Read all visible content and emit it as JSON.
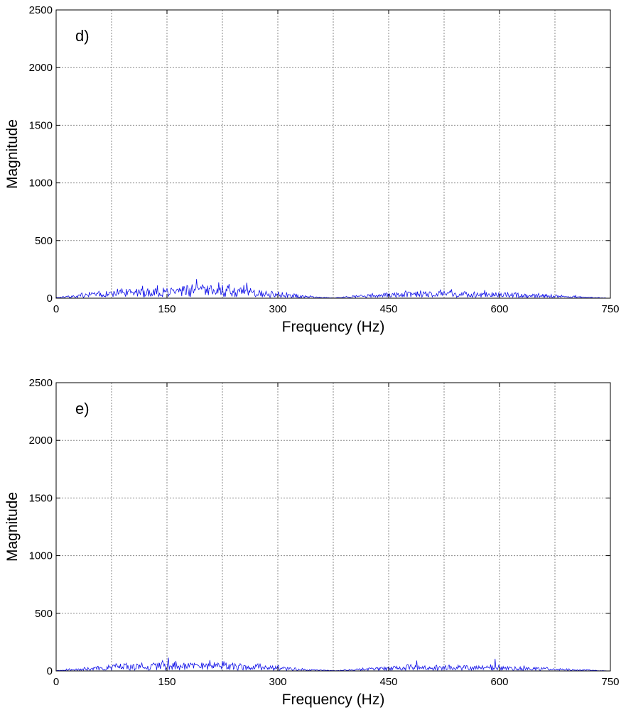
{
  "colors": {
    "series": "#1010e8"
  },
  "chart_data": [
    {
      "type": "line",
      "panel_label": "d)",
      "xlabel": "Frequency (Hz)",
      "ylabel": "Magnitude",
      "xlim": [
        0,
        750
      ],
      "ylim": [
        0,
        2500
      ],
      "xticks": [
        "0",
        "150",
        "300",
        "450",
        "600",
        "750"
      ],
      "yticks": [
        "0",
        "500",
        "1000",
        "1500",
        "2000",
        "2500"
      ],
      "grid": true,
      "x_grid_step": 75,
      "y_grid_step": 500,
      "x_step": 1,
      "noise_seed": 7,
      "envelope": [
        [
          0,
          5
        ],
        [
          30,
          20
        ],
        [
          75,
          45
        ],
        [
          150,
          65
        ],
        [
          190,
          78
        ],
        [
          225,
          70
        ],
        [
          260,
          60
        ],
        [
          300,
          30
        ],
        [
          345,
          12
        ],
        [
          375,
          2
        ],
        [
          410,
          18
        ],
        [
          450,
          32
        ],
        [
          525,
          45
        ],
        [
          600,
          35
        ],
        [
          675,
          20
        ],
        [
          720,
          8
        ],
        [
          750,
          0
        ]
      ],
      "spikes": [
        [
          190,
          165
        ],
        [
          225,
          115
        ],
        [
          258,
          135
        ],
        [
          520,
          75
        ],
        [
          580,
          70
        ]
      ]
    },
    {
      "type": "line",
      "panel_label": "e)",
      "xlabel": "Frequency (Hz)",
      "ylabel": "Magnitude",
      "xlim": [
        0,
        750
      ],
      "ylim": [
        0,
        2500
      ],
      "xticks": [
        "0",
        "150",
        "300",
        "450",
        "600",
        "750"
      ],
      "yticks": [
        "0",
        "500",
        "1000",
        "1500",
        "2000",
        "2500"
      ],
      "grid": true,
      "x_grid_step": 75,
      "y_grid_step": 500,
      "x_step": 1,
      "noise_seed": 19,
      "envelope": [
        [
          0,
          3
        ],
        [
          30,
          15
        ],
        [
          75,
          35
        ],
        [
          150,
          50
        ],
        [
          225,
          50
        ],
        [
          260,
          42
        ],
        [
          300,
          28
        ],
        [
          345,
          10
        ],
        [
          375,
          2
        ],
        [
          410,
          15
        ],
        [
          450,
          25
        ],
        [
          525,
          35
        ],
        [
          600,
          30
        ],
        [
          675,
          18
        ],
        [
          720,
          6
        ],
        [
          750,
          0
        ]
      ],
      "spikes": [
        [
          152,
          115
        ],
        [
          225,
          85
        ],
        [
          488,
          90
        ],
        [
          594,
          105
        ]
      ]
    }
  ]
}
